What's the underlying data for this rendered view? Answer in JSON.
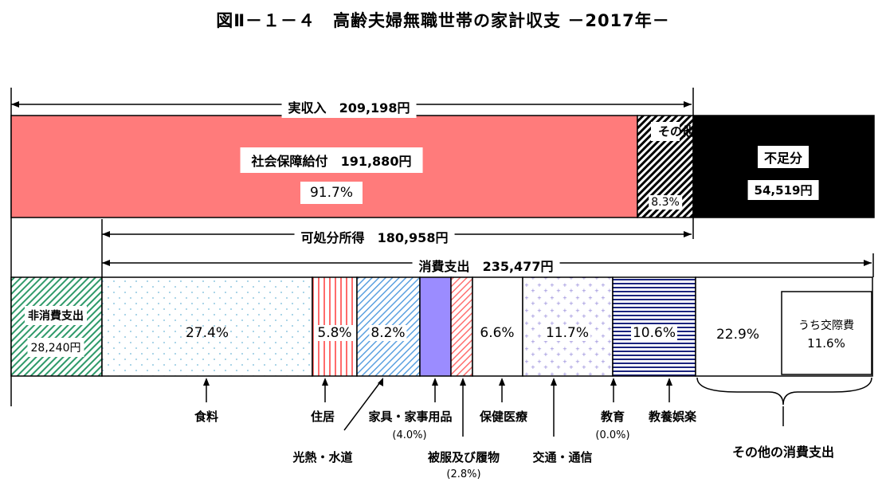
{
  "title": "図Ⅱ－１－４　高齢夫婦無職世帯の家計収支 －2017年－",
  "chart_data": {
    "type": "bar",
    "income": {
      "label": "実収入",
      "value": "209,198円",
      "segments": [
        {
          "label": "社会保障給付",
          "value": "191,880円",
          "pct": "91.7%",
          "color": "#ff7b7b"
        },
        {
          "label": "その他",
          "pct": "8.3%",
          "pattern": "diagonal-hatch"
        },
        {
          "label": "不足分",
          "value": "54,519円",
          "color": "#000000"
        }
      ]
    },
    "disposable": {
      "label": "可処分所得",
      "value": "180,958円"
    },
    "consumption": {
      "label": "消費支出",
      "value": "235,477円"
    },
    "expenses": [
      {
        "label": "非消費支出",
        "value": "28,240円",
        "pattern": "green-hatch"
      },
      {
        "label": "食料",
        "pct": "27.4%"
      },
      {
        "label": "住居",
        "pct": "5.8%"
      },
      {
        "label": "光熱・水道",
        "pct": "8.2%"
      },
      {
        "label": "家具・家事用品",
        "pct": "(4.0%)",
        "color": "#9b8cff"
      },
      {
        "label": "被服及び履物",
        "pct": "(2.8%)"
      },
      {
        "label": "保健医療",
        "pct": "6.6%"
      },
      {
        "label": "交通・通信",
        "pct": "11.7%"
      },
      {
        "label": "教育",
        "pct": "(0.0%)"
      },
      {
        "label": "教養娯楽",
        "pct": "10.6%"
      },
      {
        "label": "その他の消費支出",
        "pct": "22.9%",
        "sub_label": "うち交際費",
        "sub_pct": "11.6%"
      }
    ]
  }
}
